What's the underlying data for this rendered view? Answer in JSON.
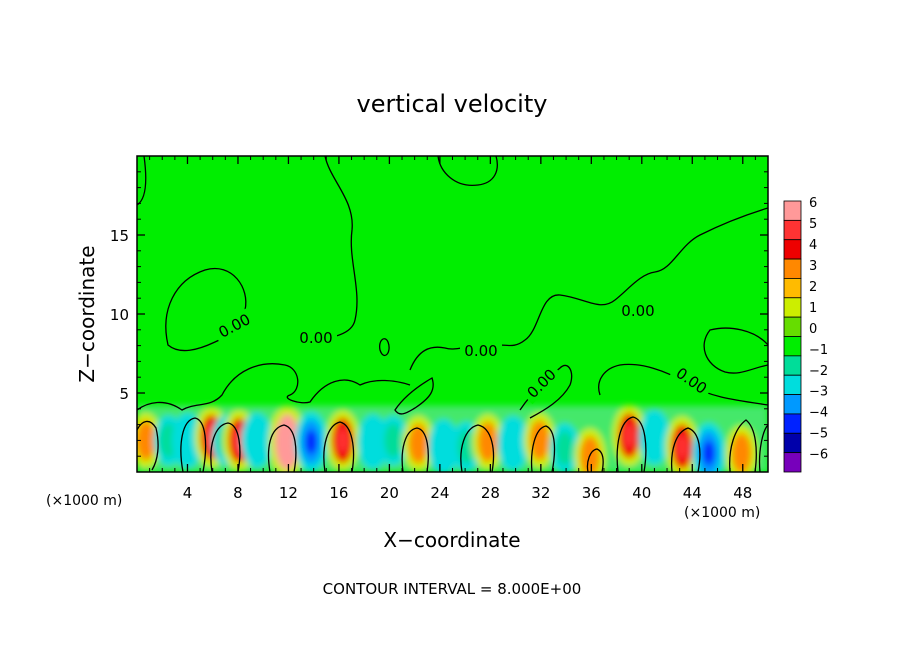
{
  "chart_data": {
    "type": "heatmap",
    "title": "vertical velocity",
    "xlabel": "X−coordinate",
    "ylabel": "Z−coordinate",
    "x_units_left": "(×1000 m)",
    "x_units_right": "(×1000 m)",
    "footer": "CONTOUR INTERVAL = 8.000E+00",
    "xlim": [
      0,
      50
    ],
    "ylim": [
      0,
      20
    ],
    "x_ticks": [
      4,
      8,
      12,
      16,
      20,
      24,
      28,
      32,
      36,
      40,
      44,
      48
    ],
    "y_ticks": [
      5,
      10,
      15
    ],
    "contour_labels": [
      "0.00",
      "0.00",
      "0.00",
      "0.00",
      "0.00",
      "0.00"
    ],
    "colorbar": {
      "labels": [
        "6",
        "5",
        "4",
        "3",
        "2",
        "1",
        "0",
        "−1",
        "−2",
        "−3",
        "−4",
        "−5",
        "−6"
      ],
      "colors": [
        "#ff9999",
        "#ff3333",
        "#ee0000",
        "#ff8800",
        "#ffbb00",
        "#ccee00",
        "#66dd00",
        "#00ee00",
        "#00dd99",
        "#00dddd",
        "#0099ff",
        "#0022ff",
        "#0000aa",
        "#7700bb"
      ]
    },
    "background_value_color": "#00ee00",
    "cells": [
      {
        "x": 0.7,
        "z": 2.0,
        "value": 3
      },
      {
        "x": 2.5,
        "z": 2.0,
        "value": -2
      },
      {
        "x": 4.0,
        "z": 2.0,
        "value": -3
      },
      {
        "x": 5.9,
        "z": 2.2,
        "value": 4
      },
      {
        "x": 7.1,
        "z": 2.0,
        "value": -2
      },
      {
        "x": 8.1,
        "z": 2.0,
        "value": 4
      },
      {
        "x": 9.5,
        "z": 2.0,
        "value": -3
      },
      {
        "x": 11.9,
        "z": 1.9,
        "value": 6
      },
      {
        "x": 13.8,
        "z": 1.9,
        "value": -4
      },
      {
        "x": 16.3,
        "z": 2.0,
        "value": 4
      },
      {
        "x": 18.7,
        "z": 1.9,
        "value": -3
      },
      {
        "x": 20.3,
        "z": 2.0,
        "value": -2
      },
      {
        "x": 22.3,
        "z": 1.8,
        "value": 3
      },
      {
        "x": 24.3,
        "z": 1.6,
        "value": -3
      },
      {
        "x": 26.1,
        "z": 1.6,
        "value": -2
      },
      {
        "x": 27.8,
        "z": 1.9,
        "value": 3
      },
      {
        "x": 29.8,
        "z": 1.8,
        "value": -3
      },
      {
        "x": 31.9,
        "z": 2.0,
        "value": 3
      },
      {
        "x": 33.9,
        "z": 1.5,
        "value": -2
      },
      {
        "x": 35.9,
        "z": 1.0,
        "value": 3
      },
      {
        "x": 39.0,
        "z": 2.3,
        "value": 4
      },
      {
        "x": 41.0,
        "z": 2.2,
        "value": -3
      },
      {
        "x": 43.2,
        "z": 1.6,
        "value": 4
      },
      {
        "x": 45.3,
        "z": 1.2,
        "value": -4
      },
      {
        "x": 47.9,
        "z": 1.2,
        "value": 3
      }
    ]
  }
}
